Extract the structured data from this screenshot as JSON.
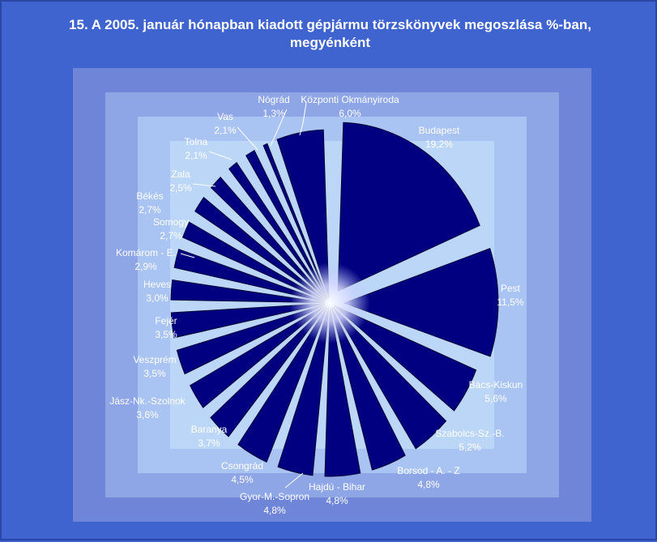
{
  "chart_data": {
    "type": "pie",
    "title": "15. A  2005. január hónapban kiadott gépjármu törzskönyvek megoszlása %-ban, megyénként",
    "slices": [
      {
        "label": "Budapest",
        "value": 19.2,
        "value_label": "19,2%"
      },
      {
        "label": "Pest",
        "value": 11.5,
        "value_label": "11,5%"
      },
      {
        "label": "Bács-Kiskun",
        "value": 5.6,
        "value_label": "5,6%"
      },
      {
        "label": "Szabolcs-Sz.-B.",
        "value": 5.2,
        "value_label": "5,2%"
      },
      {
        "label": "Borsod - A. - Z",
        "value": 4.8,
        "value_label": "4,8%"
      },
      {
        "label": "Hajdú - Bihar",
        "value": 4.8,
        "value_label": "4,8%"
      },
      {
        "label": "Gyor-M.-Sopron",
        "value": 4.8,
        "value_label": "4,8%"
      },
      {
        "label": "Csongrád",
        "value": 4.5,
        "value_label": "4,5%"
      },
      {
        "label": "Baranya",
        "value": 3.7,
        "value_label": "3,7%"
      },
      {
        "label": "Jász-Nk.-Szolnok",
        "value": 3.6,
        "value_label": "3,6%"
      },
      {
        "label": "Veszprém",
        "value": 3.5,
        "value_label": "3,5%"
      },
      {
        "label": "Fejér",
        "value": 3.5,
        "value_label": "3,5%"
      },
      {
        "label": "Heves",
        "value": 3.0,
        "value_label": "3,0%"
      },
      {
        "label": "Komárom - E.",
        "value": 2.9,
        "value_label": "2,9%"
      },
      {
        "label": "Somogy",
        "value": 2.7,
        "value_label": "2,7%"
      },
      {
        "label": "Békés",
        "value": 2.7,
        "value_label": "2,7%"
      },
      {
        "label": "Zala",
        "value": 2.5,
        "value_label": "2,5%"
      },
      {
        "label": "Tolna",
        "value": 2.1,
        "value_label": "2,1%"
      },
      {
        "label": "Vas",
        "value": 2.1,
        "value_label": "2,1%"
      },
      {
        "label": "Nógrád",
        "value": 1.3,
        "value_label": "1,3%"
      },
      {
        "label": "Központi Okmányiroda",
        "value": 6.0,
        "value_label": "6,0%"
      }
    ],
    "slice_color": "#000080",
    "slice_edge_color": "#000033",
    "legend": "none"
  }
}
